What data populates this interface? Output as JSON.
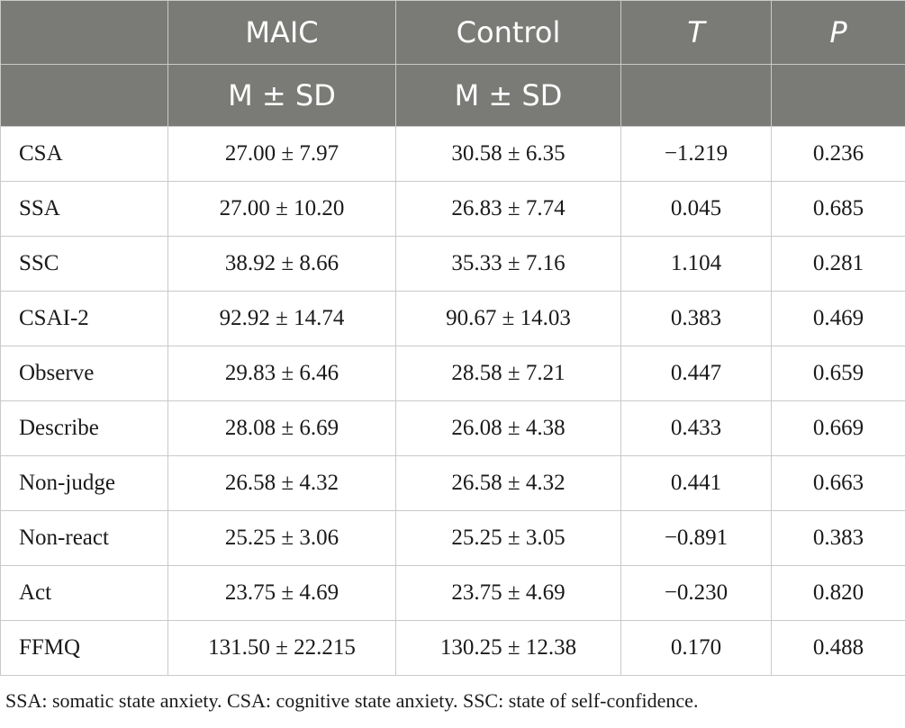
{
  "header": {
    "row1": [
      "",
      "MAIC",
      "Control",
      "T",
      "P"
    ],
    "row2": [
      "",
      "M ± SD",
      "M ± SD",
      "",
      ""
    ]
  },
  "rows": [
    {
      "label": "CSA",
      "maic": "27.00 ± 7.97",
      "control": "30.58 ± 6.35",
      "t": "−1.219",
      "p": "0.236"
    },
    {
      "label": "SSA",
      "maic": "27.00 ± 10.20",
      "control": "26.83 ± 7.74",
      "t": "0.045",
      "p": "0.685"
    },
    {
      "label": "SSC",
      "maic": "38.92 ± 8.66",
      "control": "35.33 ± 7.16",
      "t": "1.104",
      "p": "0.281"
    },
    {
      "label": "CSAI-2",
      "maic": "92.92 ± 14.74",
      "control": "90.67 ± 14.03",
      "t": "0.383",
      "p": "0.469"
    },
    {
      "label": "Observe",
      "maic": "29.83 ± 6.46",
      "control": "28.58 ± 7.21",
      "t": "0.447",
      "p": "0.659"
    },
    {
      "label": "Describe",
      "maic": "28.08 ± 6.69",
      "control": "26.08 ± 4.38",
      "t": "0.433",
      "p": "0.669"
    },
    {
      "label": "Non-judge",
      "maic": "26.58 ± 4.32",
      "control": "26.58 ± 4.32",
      "t": "0.441",
      "p": "0.663"
    },
    {
      "label": "Non-react",
      "maic": "25.25 ± 3.06",
      "control": "25.25 ± 3.05",
      "t": "−0.891",
      "p": "0.383"
    },
    {
      "label": "Act",
      "maic": "23.75 ± 4.69",
      "control": "23.75 ± 4.69",
      "t": "−0.230",
      "p": "0.820"
    },
    {
      "label": "FFMQ",
      "maic": "131.50 ± 22.215",
      "control": "130.25 ± 12.38",
      "t": "0.170",
      "p": "0.488"
    }
  ],
  "footnote": "SSA: somatic state anxiety. CSA: cognitive state anxiety. SSC: state of self-confidence.",
  "colors": {
    "header_bg": "#7a7b77",
    "header_text": "#ffffff",
    "grid": "#c9c9c9",
    "text": "#1a1a1a"
  }
}
